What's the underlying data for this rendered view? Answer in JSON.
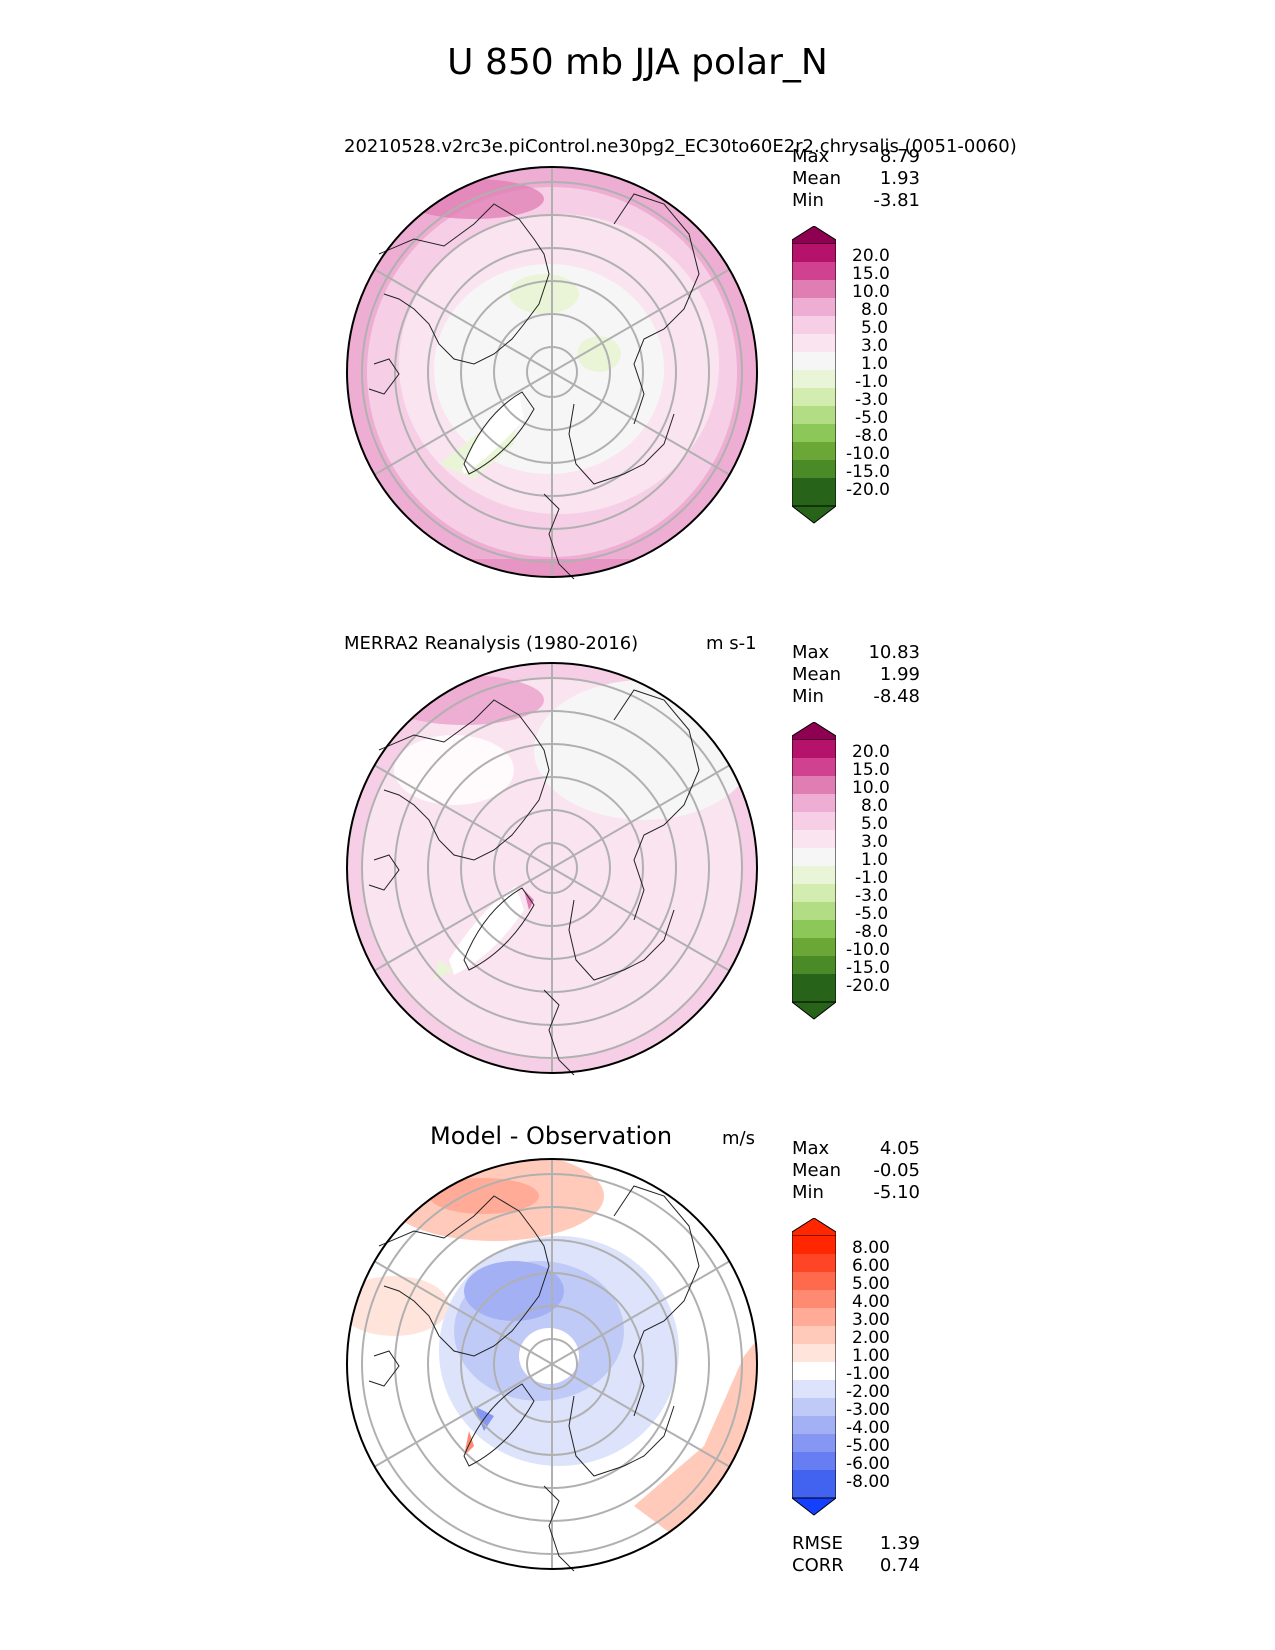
{
  "figure": {
    "title": "U 850 mb JJA polar_N"
  },
  "panels": [
    {
      "title_left": "20210528.v2rc3e.piControl.ne30pg2_EC30to60E2r2.chrysalis (0051-0060)",
      "title_right": "",
      "stats": [
        {
          "label": "Max",
          "value": "8.79"
        },
        {
          "label": "Mean",
          "value": "1.93"
        },
        {
          "label": "Min",
          "value": "-3.81"
        }
      ],
      "colorbar_ticks": [
        "20.0",
        "15.0",
        "10.0",
        "8.0",
        "5.0",
        "3.0",
        "1.0",
        "-1.0",
        "-3.0",
        "-5.0",
        "-8.0",
        "-10.0",
        "-15.0",
        "-20.0"
      ]
    },
    {
      "title_left": "MERRA2 Reanalysis (1980-2016)",
      "title_right": "m s-1",
      "stats": [
        {
          "label": "Max",
          "value": "10.83"
        },
        {
          "label": "Mean",
          "value": "1.99"
        },
        {
          "label": "Min",
          "value": "-8.48"
        }
      ],
      "colorbar_ticks": [
        "20.0",
        "15.0",
        "10.0",
        "8.0",
        "5.0",
        "3.0",
        "1.0",
        "-1.0",
        "-3.0",
        "-5.0",
        "-8.0",
        "-10.0",
        "-15.0",
        "-20.0"
      ]
    },
    {
      "title_center": "Model - Observation",
      "title_right": "m/s",
      "stats": [
        {
          "label": "Max",
          "value": "4.05"
        },
        {
          "label": "Mean",
          "value": "-0.05"
        },
        {
          "label": "Min",
          "value": "-5.10"
        }
      ],
      "colorbar_ticks": [
        "8.00",
        "6.00",
        "5.00",
        "4.00",
        "3.00",
        "2.00",
        "1.00",
        "-1.00",
        "-2.00",
        "-3.00",
        "-4.00",
        "-5.00",
        "-6.00",
        "-8.00"
      ],
      "metrics": [
        {
          "label": "RMSE",
          "value": "1.39"
        },
        {
          "label": "CORR",
          "value": "0.74"
        }
      ]
    }
  ],
  "colors": {
    "field_scale": [
      "#8e0152",
      "#b5126b",
      "#d0428f",
      "#e07eb4",
      "#eeadd3",
      "#f6cfe6",
      "#fae4f0",
      "#f6f6f6",
      "#eaf5d8",
      "#d3edb1",
      "#b2dd85",
      "#8cc759",
      "#6aa737",
      "#4a8a27",
      "#276419"
    ],
    "diff_scale": [
      "#ff2600",
      "#ff4525",
      "#ff6a4d",
      "#ff8a72",
      "#ffab98",
      "#ffcab9",
      "#ffe4dc",
      "#ffffff",
      "#dde3fa",
      "#c0caf6",
      "#a3b1f4",
      "#8597f2",
      "#667ef1",
      "#4262f0",
      "#1540ff"
    ]
  }
}
